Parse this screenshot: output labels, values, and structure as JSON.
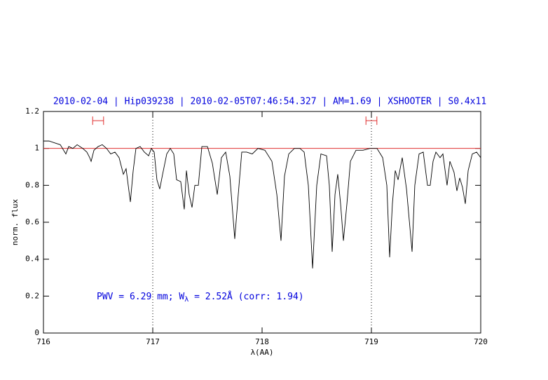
{
  "chart_data": {
    "type": "line",
    "title": "2010-02-04 | Hip039238 | 2010-02-05T07:46:54.327 | AM=1.69 | XSHOOTER | S0.4x11",
    "x_label": "λ(AA)",
    "y_label": "norm. flux",
    "annotation_parts": [
      "PWV = 6.29 mm; W",
      "λ",
      " = 2.52Å (corr: 1.94)"
    ],
    "xlim": [
      716,
      720
    ],
    "ylim": [
      0,
      1.2
    ],
    "xticks": [
      716,
      717,
      718,
      719,
      720
    ],
    "yticks": [
      0,
      0.2,
      0.4,
      0.6,
      0.8,
      1,
      1.2
    ],
    "reference_line": {
      "y": 1,
      "color": "#e03030"
    },
    "vlines": [
      717,
      719
    ],
    "ranges": {
      "y": 1.15,
      "color": "#e03030",
      "spans": [
        [
          716.45,
          716.55
        ],
        [
          718.95,
          719.05
        ]
      ]
    },
    "x": [
      716.0,
      716.051,
      716.103,
      716.154,
      716.205,
      716.231,
      716.269,
      716.308,
      716.359,
      716.397,
      716.423,
      716.436,
      716.462,
      716.5,
      716.538,
      716.577,
      716.615,
      716.654,
      716.692,
      716.731,
      716.756,
      716.795,
      716.821,
      716.846,
      716.885,
      716.923,
      716.962,
      716.987,
      717.013,
      717.038,
      717.064,
      717.09,
      717.128,
      717.16,
      717.192,
      717.218,
      717.256,
      717.288,
      717.308,
      717.333,
      717.359,
      717.385,
      717.417,
      717.449,
      717.5,
      717.545,
      717.59,
      717.628,
      717.667,
      717.705,
      717.75,
      717.782,
      717.814,
      717.859,
      717.91,
      717.962,
      718.026,
      718.09,
      718.135,
      718.173,
      718.205,
      718.244,
      718.295,
      718.346,
      718.385,
      718.423,
      718.462,
      718.5,
      718.538,
      718.59,
      718.615,
      718.641,
      718.667,
      718.692,
      718.718,
      718.744,
      718.776,
      718.808,
      718.859,
      718.923,
      718.987,
      719.051,
      719.103,
      719.141,
      719.167,
      719.192,
      719.218,
      719.244,
      719.282,
      719.321,
      719.372,
      719.397,
      719.436,
      719.474,
      719.513,
      719.538,
      719.564,
      719.59,
      719.628,
      719.654,
      719.692,
      719.718,
      719.756,
      719.782,
      719.808,
      719.833,
      719.859,
      719.885,
      719.923,
      719.962,
      720.0
    ],
    "series": [
      {
        "color": "#000000",
        "values": [
          1.04,
          1.04,
          1.03,
          1.02,
          0.97,
          1.01,
          1.0,
          1.02,
          1.0,
          0.98,
          0.95,
          0.93,
          0.99,
          1.01,
          1.02,
          1.0,
          0.97,
          0.98,
          0.95,
          0.86,
          0.89,
          0.71,
          0.88,
          1.0,
          1.01,
          0.98,
          0.96,
          1.0,
          0.98,
          0.83,
          0.78,
          0.86,
          0.97,
          1.0,
          0.97,
          0.83,
          0.82,
          0.67,
          0.88,
          0.75,
          0.68,
          0.8,
          0.8,
          1.01,
          1.01,
          0.92,
          0.75,
          0.95,
          0.98,
          0.85,
          0.51,
          0.75,
          0.98,
          0.98,
          0.97,
          1.0,
          0.99,
          0.93,
          0.75,
          0.5,
          0.85,
          0.97,
          1.0,
          1.0,
          0.98,
          0.8,
          0.35,
          0.8,
          0.97,
          0.96,
          0.8,
          0.44,
          0.75,
          0.86,
          0.7,
          0.5,
          0.7,
          0.93,
          0.99,
          0.99,
          1.0,
          1.0,
          0.95,
          0.8,
          0.41,
          0.7,
          0.88,
          0.83,
          0.95,
          0.78,
          0.44,
          0.8,
          0.97,
          0.98,
          0.8,
          0.8,
          0.93,
          0.98,
          0.95,
          0.97,
          0.8,
          0.93,
          0.87,
          0.77,
          0.84,
          0.79,
          0.7,
          0.88,
          0.97,
          0.98,
          0.95
        ]
      }
    ],
    "title_color": "#0000dd"
  }
}
